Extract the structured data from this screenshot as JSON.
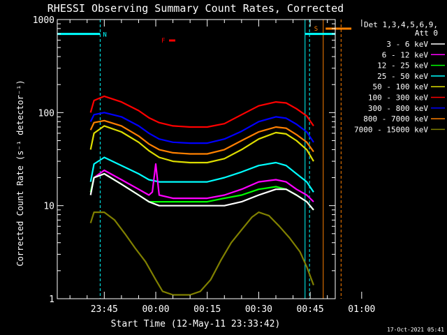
{
  "chart_data": {
    "type": "line",
    "title": "RHESSI Observing Summary Count Rates, Corrected",
    "xlabel": "Start Time (12-May-11 23:33:42)",
    "ylabel": "Corrected Count Rate (s⁻¹ detector⁻¹)",
    "yscale": "log",
    "ylim": [
      1,
      1000
    ],
    "xlim_minutes": [
      -13.7,
      67.3
    ],
    "x_ticks": [
      {
        "label": "23:45",
        "t": 0
      },
      {
        "label": "00:00",
        "t": 15
      },
      {
        "label": "00:15",
        "t": 30
      },
      {
        "label": "00:30",
        "t": 45
      },
      {
        "label": "00:45",
        "t": 60
      },
      {
        "label": "01:00",
        "t": 75
      }
    ],
    "y_ticks": [
      {
        "label": "1",
        "v": 1
      },
      {
        "label": "10",
        "v": 10
      },
      {
        "label": "100",
        "v": 100
      },
      {
        "label": "1000",
        "v": 1000
      }
    ],
    "legend": {
      "position": "right",
      "header": [
        "Det 1,3,4,5,6,9,",
        "Att 0"
      ]
    },
    "series": [
      {
        "name": "3 - 6 keV",
        "color": "#ffffff",
        "points": [
          [
            -4,
            13
          ],
          [
            -3,
            20
          ],
          [
            0,
            22
          ],
          [
            5,
            17
          ],
          [
            10,
            13
          ],
          [
            13,
            11
          ],
          [
            16,
            10
          ],
          [
            20,
            10
          ],
          [
            25,
            10
          ],
          [
            30,
            10
          ],
          [
            35,
            10
          ],
          [
            40,
            11
          ],
          [
            45,
            13
          ],
          [
            50,
            15
          ],
          [
            53,
            15
          ],
          [
            56,
            13
          ],
          [
            59,
            11
          ],
          [
            61,
            9
          ]
        ]
      },
      {
        "name": "6 - 12 keV",
        "color": "#ff00ff",
        "points": [
          [
            -4,
            14
          ],
          [
            -3,
            20
          ],
          [
            0,
            24
          ],
          [
            5,
            19
          ],
          [
            10,
            15
          ],
          [
            13,
            13
          ],
          [
            14,
            14
          ],
          [
            15,
            28
          ],
          [
            16,
            13
          ],
          [
            20,
            12
          ],
          [
            25,
            12
          ],
          [
            30,
            12
          ],
          [
            35,
            13
          ],
          [
            40,
            15
          ],
          [
            45,
            18
          ],
          [
            50,
            19
          ],
          [
            53,
            18
          ],
          [
            56,
            15
          ],
          [
            59,
            13
          ],
          [
            61,
            11
          ]
        ]
      },
      {
        "name": "12 - 25 keV",
        "color": "#00ff00",
        "points": [
          [
            -4,
            14
          ],
          [
            -3,
            20
          ],
          [
            0,
            22
          ],
          [
            5,
            17
          ],
          [
            10,
            13
          ],
          [
            13,
            11
          ],
          [
            16,
            11
          ],
          [
            20,
            11
          ],
          [
            25,
            11
          ],
          [
            30,
            11
          ],
          [
            35,
            12
          ],
          [
            40,
            13
          ],
          [
            45,
            15
          ],
          [
            50,
            16
          ],
          [
            53,
            15
          ],
          [
            56,
            13
          ],
          [
            59,
            11
          ],
          [
            61,
            9
          ]
        ]
      },
      {
        "name": "25 - 50 keV",
        "color": "#00ffff",
        "points": [
          [
            -4,
            18
          ],
          [
            -3,
            28
          ],
          [
            0,
            33
          ],
          [
            5,
            27
          ],
          [
            10,
            22
          ],
          [
            13,
            19
          ],
          [
            16,
            18
          ],
          [
            20,
            18
          ],
          [
            25,
            18
          ],
          [
            30,
            18
          ],
          [
            35,
            20
          ],
          [
            40,
            23
          ],
          [
            45,
            27
          ],
          [
            50,
            29
          ],
          [
            53,
            27
          ],
          [
            56,
            22
          ],
          [
            59,
            18
          ],
          [
            61,
            14
          ]
        ]
      },
      {
        "name": "50 - 100 keV",
        "color": "#dddd00",
        "points": [
          [
            -4,
            40
          ],
          [
            -3,
            60
          ],
          [
            0,
            72
          ],
          [
            5,
            62
          ],
          [
            10,
            48
          ],
          [
            13,
            39
          ],
          [
            16,
            33
          ],
          [
            20,
            30
          ],
          [
            25,
            29
          ],
          [
            30,
            29
          ],
          [
            35,
            32
          ],
          [
            40,
            40
          ],
          [
            45,
            52
          ],
          [
            50,
            61
          ],
          [
            53,
            59
          ],
          [
            56,
            50
          ],
          [
            59,
            40
          ],
          [
            61,
            30
          ]
        ]
      },
      {
        "name": "100 - 300 keV",
        "color": "#ff0000",
        "points": [
          [
            -4,
            100
          ],
          [
            -3,
            135
          ],
          [
            0,
            150
          ],
          [
            5,
            130
          ],
          [
            10,
            105
          ],
          [
            13,
            88
          ],
          [
            16,
            78
          ],
          [
            20,
            72
          ],
          [
            25,
            70
          ],
          [
            30,
            70
          ],
          [
            35,
            76
          ],
          [
            40,
            95
          ],
          [
            45,
            118
          ],
          [
            50,
            130
          ],
          [
            53,
            127
          ],
          [
            56,
            110
          ],
          [
            59,
            92
          ],
          [
            61,
            72
          ]
        ]
      },
      {
        "name": "300 - 800 keV",
        "color": "#0000ff",
        "points": [
          [
            -4,
            80
          ],
          [
            -3,
            95
          ],
          [
            0,
            100
          ],
          [
            5,
            90
          ],
          [
            10,
            72
          ],
          [
            13,
            60
          ],
          [
            16,
            52
          ],
          [
            20,
            48
          ],
          [
            25,
            47
          ],
          [
            30,
            47
          ],
          [
            35,
            52
          ],
          [
            40,
            63
          ],
          [
            45,
            80
          ],
          [
            50,
            90
          ],
          [
            53,
            87
          ],
          [
            56,
            75
          ],
          [
            59,
            62
          ],
          [
            61,
            48
          ]
        ]
      },
      {
        "name": "800 - 7000 keV",
        "color": "#ff8000",
        "points": [
          [
            -4,
            65
          ],
          [
            -3,
            78
          ],
          [
            0,
            82
          ],
          [
            5,
            72
          ],
          [
            10,
            56
          ],
          [
            13,
            46
          ],
          [
            16,
            40
          ],
          [
            20,
            37
          ],
          [
            25,
            36
          ],
          [
            30,
            36
          ],
          [
            35,
            40
          ],
          [
            40,
            50
          ],
          [
            45,
            62
          ],
          [
            50,
            70
          ],
          [
            53,
            68
          ],
          [
            56,
            58
          ],
          [
            59,
            48
          ],
          [
            61,
            38
          ]
        ]
      },
      {
        "name": "7000 - 15000 keV",
        "color": "#808000",
        "points": [
          [
            -4,
            6.5
          ],
          [
            -3,
            8.5
          ],
          [
            0,
            8.5
          ],
          [
            3,
            7
          ],
          [
            6,
            5
          ],
          [
            9,
            3.5
          ],
          [
            12,
            2.5
          ],
          [
            15,
            1.6
          ],
          [
            17,
            1.2
          ],
          [
            20,
            1.1
          ],
          [
            25,
            1.1
          ],
          [
            28,
            1.2
          ],
          [
            31,
            1.6
          ],
          [
            34,
            2.6
          ],
          [
            37,
            4
          ],
          [
            40,
            5.5
          ],
          [
            43,
            7.5
          ],
          [
            45,
            8.5
          ],
          [
            48,
            7.8
          ],
          [
            51,
            6
          ],
          [
            54,
            4.5
          ],
          [
            57,
            3.2
          ],
          [
            59,
            2.2
          ],
          [
            61,
            1.4
          ]
        ]
      }
    ],
    "flags": [
      {
        "label": "N",
        "color": "#00ffff",
        "level": 700
      },
      {
        "label": "F",
        "color": "#ff0000"
      },
      {
        "label": "S",
        "color": "#ff8000",
        "level": 700
      }
    ],
    "footer_date": "17-Oct-2021 05:41"
  }
}
